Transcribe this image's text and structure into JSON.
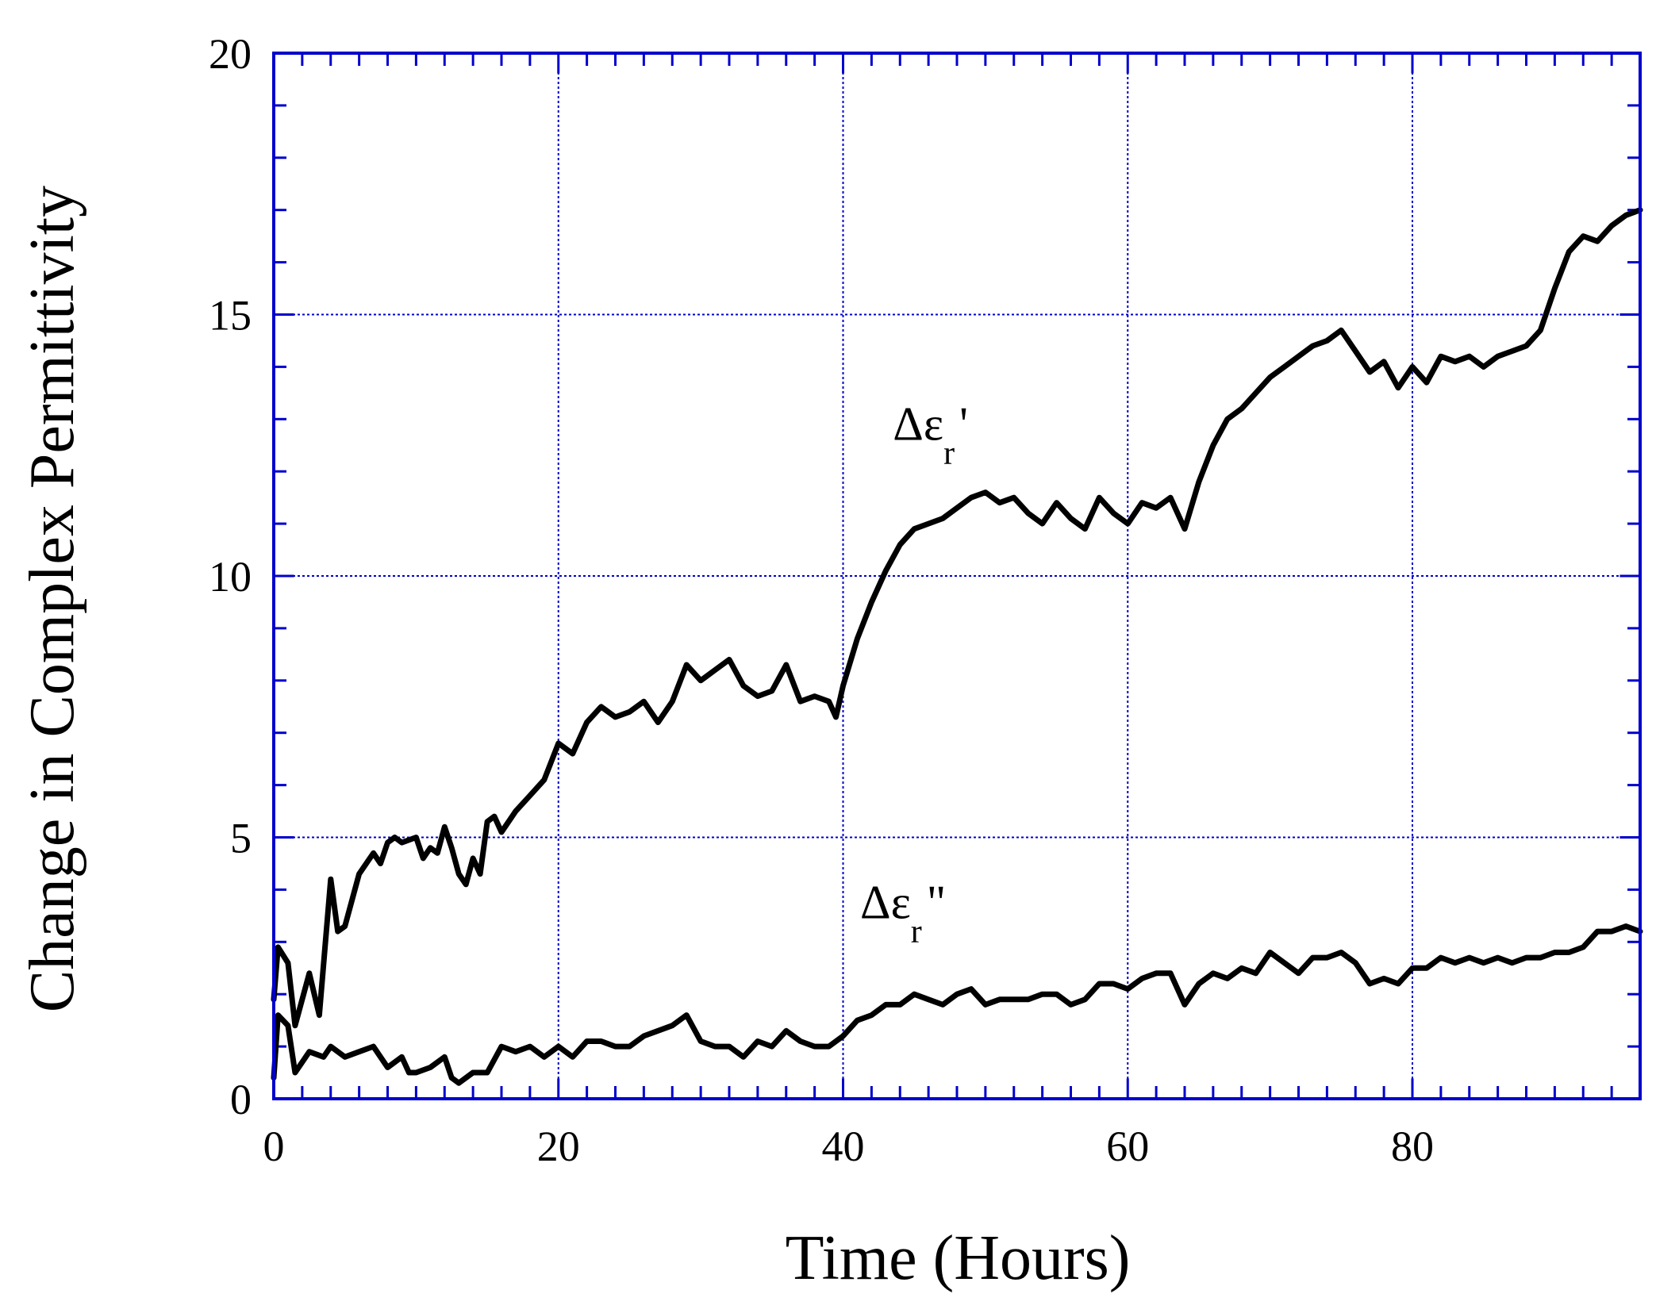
{
  "chart_data": {
    "type": "line",
    "xlabel": "Time (Hours)",
    "ylabel": "Change in Complex Permittivity",
    "xlim": [
      0,
      96
    ],
    "ylim": [
      0,
      20
    ],
    "x_ticks": [
      0,
      20,
      40,
      60,
      80
    ],
    "y_ticks": [
      0,
      5,
      10,
      15,
      20
    ],
    "x_minor_step": 2,
    "y_minor_step": 1,
    "grid": true,
    "frame_color": "#0000cc",
    "grid_color": "#0000cc",
    "line_color": "#000000",
    "series": [
      {
        "annotation": {
          "symbol": "Δε",
          "sub": "r",
          "suffix": "'",
          "x": 43.5,
          "y": 12.6
        },
        "x": [
          0,
          0.3,
          1,
          1.5,
          2.5,
          3.2,
          4,
          4.5,
          5,
          6,
          7,
          7.5,
          8,
          8.5,
          9,
          10,
          10.5,
          11,
          11.5,
          12,
          12.5,
          13,
          13.5,
          14,
          14.5,
          15,
          15.5,
          16,
          17,
          18,
          19,
          20,
          21,
          22,
          23,
          24,
          25,
          26,
          27,
          28,
          29,
          30,
          31,
          32,
          33,
          34,
          35,
          36,
          37,
          38,
          39,
          39.5,
          40,
          41,
          42,
          43,
          44,
          45,
          46,
          47,
          48,
          49,
          50,
          51,
          52,
          53,
          54,
          55,
          56,
          57,
          58,
          59,
          60,
          61,
          62,
          63,
          64,
          65,
          66,
          67,
          68,
          69,
          70,
          71,
          72,
          73,
          74,
          75,
          76,
          77,
          78,
          79,
          80,
          81,
          82,
          83,
          84,
          85,
          86,
          87,
          88,
          89,
          90,
          91,
          92,
          93,
          94,
          95,
          96
        ],
        "y": [
          1.9,
          2.9,
          2.6,
          1.4,
          2.4,
          1.6,
          4.2,
          3.2,
          3.3,
          4.3,
          4.7,
          4.5,
          4.9,
          5.0,
          4.9,
          5.0,
          4.6,
          4.8,
          4.7,
          5.2,
          4.8,
          4.3,
          4.1,
          4.6,
          4.3,
          5.3,
          5.4,
          5.1,
          5.5,
          5.8,
          6.1,
          6.8,
          6.6,
          7.2,
          7.5,
          7.3,
          7.4,
          7.6,
          7.2,
          7.6,
          8.3,
          8.0,
          8.2,
          8.4,
          7.9,
          7.7,
          7.8,
          8.3,
          7.6,
          7.7,
          7.6,
          7.3,
          7.9,
          8.8,
          9.5,
          10.1,
          10.6,
          10.9,
          11.0,
          11.1,
          11.3,
          11.5,
          11.6,
          11.4,
          11.5,
          11.2,
          11.0,
          11.4,
          11.1,
          10.9,
          11.5,
          11.2,
          11.0,
          11.4,
          11.3,
          11.5,
          10.9,
          11.8,
          12.5,
          13.0,
          13.2,
          13.5,
          13.8,
          14.0,
          14.2,
          14.4,
          14.5,
          14.7,
          14.3,
          13.9,
          14.1,
          13.6,
          14.0,
          13.7,
          14.2,
          14.1,
          14.2,
          14.0,
          14.2,
          14.3,
          14.4,
          14.7,
          15.5,
          16.2,
          16.5,
          16.4,
          16.7,
          16.9,
          17.0
        ]
      },
      {
        "annotation": {
          "symbol": "Δε",
          "sub": "r",
          "suffix": "\"",
          "x": 41.2,
          "y": 3.45
        },
        "x": [
          0,
          0.3,
          1,
          1.5,
          2.5,
          3.5,
          4,
          5,
          6,
          7,
          8,
          9,
          9.5,
          10,
          11,
          12,
          12.5,
          13,
          14,
          15,
          16,
          17,
          18,
          19,
          20,
          21,
          22,
          23,
          24,
          25,
          26,
          27,
          28,
          29,
          30,
          31,
          32,
          33,
          34,
          35,
          36,
          37,
          38,
          39,
          40,
          41,
          42,
          43,
          44,
          45,
          46,
          47,
          48,
          49,
          50,
          51,
          52,
          53,
          54,
          55,
          56,
          57,
          58,
          59,
          60,
          61,
          62,
          63,
          64,
          65,
          66,
          67,
          68,
          69,
          70,
          71,
          72,
          73,
          74,
          75,
          76,
          77,
          78,
          79,
          80,
          81,
          82,
          83,
          84,
          85,
          86,
          87,
          88,
          89,
          90,
          91,
          92,
          93,
          94,
          95,
          96
        ],
        "y": [
          0.4,
          1.6,
          1.4,
          0.5,
          0.9,
          0.8,
          1.0,
          0.8,
          0.9,
          1.0,
          0.6,
          0.8,
          0.5,
          0.5,
          0.6,
          0.8,
          0.4,
          0.3,
          0.5,
          0.5,
          1.0,
          0.9,
          1.0,
          0.8,
          1.0,
          0.8,
          1.1,
          1.1,
          1.0,
          1.0,
          1.2,
          1.3,
          1.4,
          1.6,
          1.1,
          1.0,
          1.0,
          0.8,
          1.1,
          1.0,
          1.3,
          1.1,
          1.0,
          1.0,
          1.2,
          1.5,
          1.6,
          1.8,
          1.8,
          2.0,
          1.9,
          1.8,
          2.0,
          2.1,
          1.8,
          1.9,
          1.9,
          1.9,
          2.0,
          2.0,
          1.8,
          1.9,
          2.2,
          2.2,
          2.1,
          2.3,
          2.4,
          2.4,
          1.8,
          2.2,
          2.4,
          2.3,
          2.5,
          2.4,
          2.8,
          2.6,
          2.4,
          2.7,
          2.7,
          2.8,
          2.6,
          2.2,
          2.3,
          2.2,
          2.5,
          2.5,
          2.7,
          2.6,
          2.7,
          2.6,
          2.7,
          2.6,
          2.7,
          2.7,
          2.8,
          2.8,
          2.9,
          3.2,
          3.2,
          3.3,
          3.2
        ]
      }
    ]
  }
}
